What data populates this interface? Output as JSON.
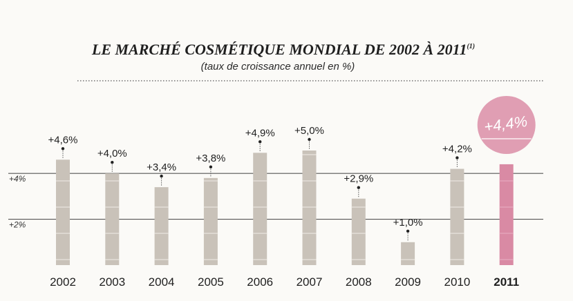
{
  "chart_data": {
    "type": "bar",
    "title": "LE MARCHÉ COSMÉTIQUE MONDIAL DE 2002 À 2011",
    "title_note": "(1)",
    "subtitle": "(taux de croissance annuel en %)",
    "categories": [
      "2002",
      "2003",
      "2004",
      "2005",
      "2006",
      "2007",
      "2008",
      "2009",
      "2010",
      "2011"
    ],
    "values": [
      4.6,
      4.0,
      3.4,
      3.8,
      4.9,
      5.0,
      2.9,
      1.0,
      4.2,
      4.4
    ],
    "value_labels": [
      "+4,6%",
      "+4,0%",
      "+3,4%",
      "+3,8%",
      "+4,9%",
      "+5,0%",
      "+2,9%",
      "+1,0%",
      "+4,2%",
      "+4,4%"
    ],
    "highlight_index": 9,
    "gridlines": [
      {
        "value": 4,
        "label": "+4%"
      },
      {
        "value": 2,
        "label": "+2%"
      }
    ],
    "colors": {
      "bar": "#c9c2b9",
      "bar_stripe": "#e9e4de",
      "highlight": "#d98aa4",
      "highlight_light": "#e6a9bd",
      "grid": "#555555",
      "dotted": "#555555"
    }
  }
}
